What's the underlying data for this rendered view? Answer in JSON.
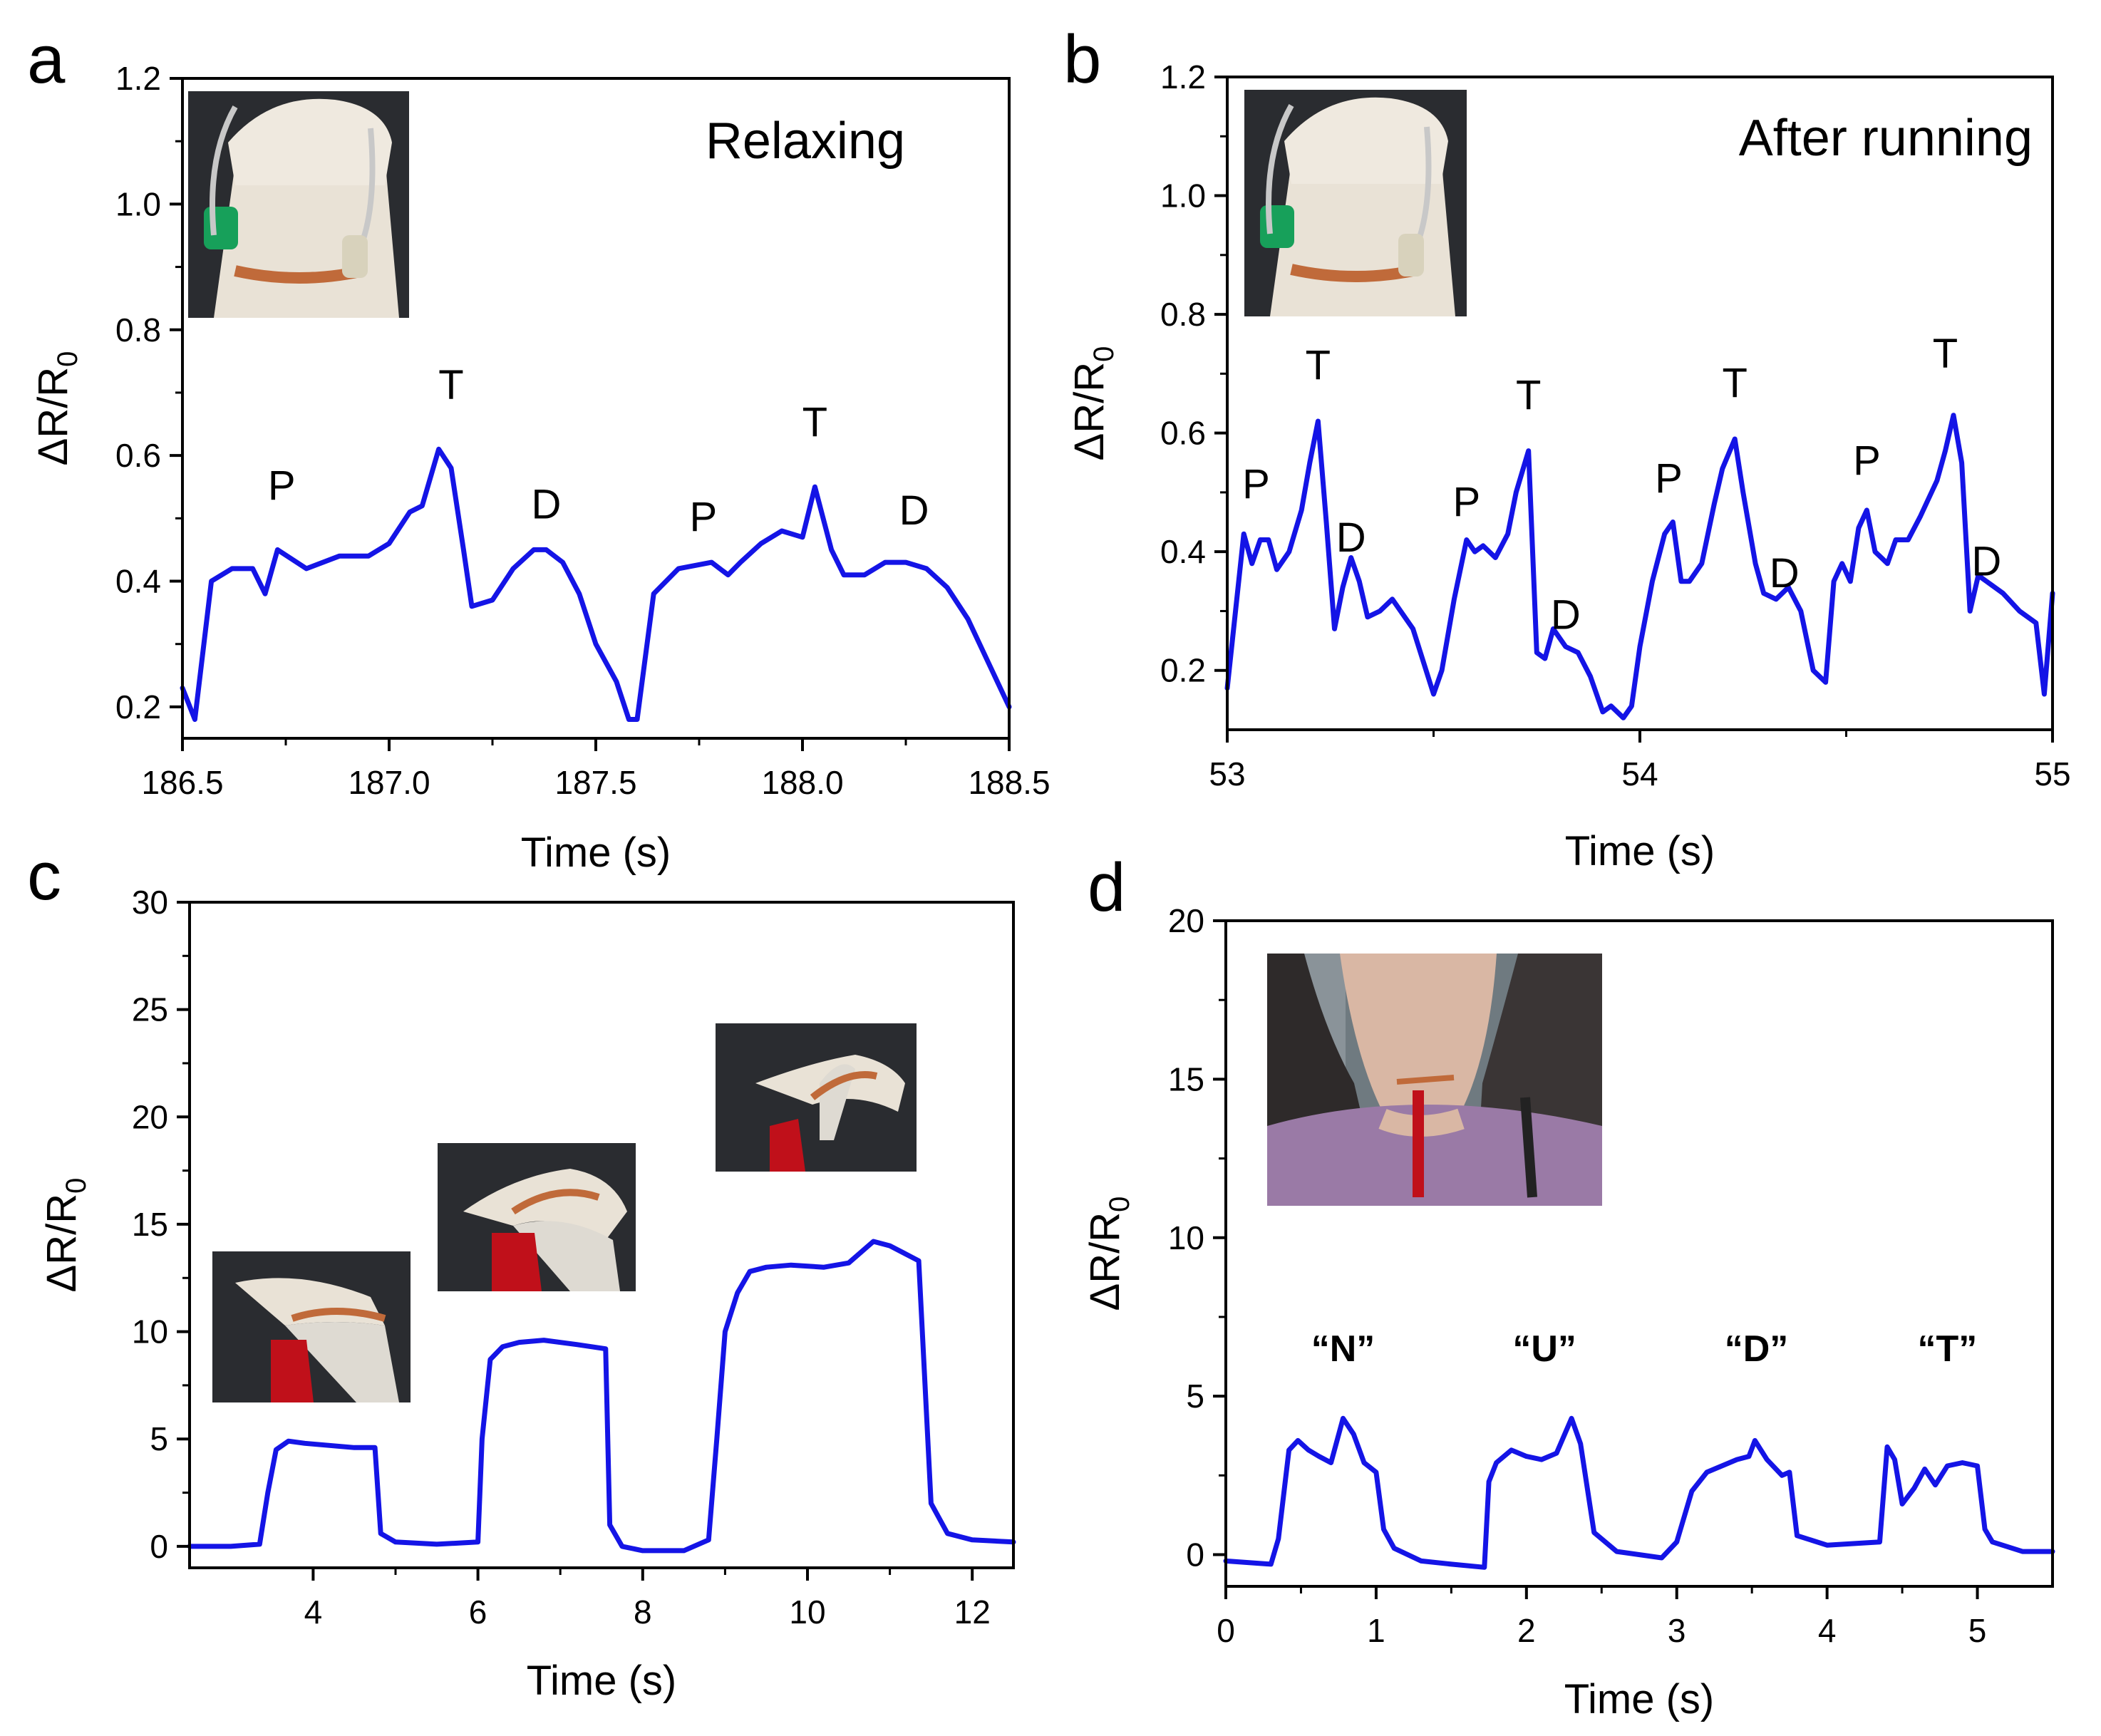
{
  "colors": {
    "line": "#1414e6",
    "axis": "#000000",
    "photo_glove": "#e9e2d6",
    "photo_dark": "#2a2c30",
    "photo_clip_red": "#c0101a",
    "photo_shirt": "#9a7aa6",
    "photo_skin": "#d9b7a4",
    "photo_copper": "#c06a3a"
  },
  "chart_data": [
    {
      "panel": "a",
      "type": "line",
      "title": "Relaxing",
      "xlabel": "Time (s)",
      "ylabel": "ΔR/R0",
      "xlim": [
        186.5,
        188.5
      ],
      "ylim": [
        0.15,
        1.2
      ],
      "xticks": [
        186.5,
        187.0,
        187.5,
        188.0,
        188.5
      ],
      "xtick_labels": [
        "186.5",
        "187.0",
        "187.5",
        "188.0",
        "188.5"
      ],
      "yticks": [
        0.2,
        0.4,
        0.6,
        0.8,
        1.0,
        1.2
      ],
      "ytick_labels": [
        "0.2",
        "0.4",
        "0.6",
        "0.8",
        "1.0",
        "1.2"
      ],
      "annotations": [
        {
          "text": "P",
          "x": 186.74,
          "y": 0.53
        },
        {
          "text": "T",
          "x": 187.15,
          "y": 0.69
        },
        {
          "text": "D",
          "x": 187.38,
          "y": 0.5
        },
        {
          "text": "P",
          "x": 187.76,
          "y": 0.48
        },
        {
          "text": "T",
          "x": 188.03,
          "y": 0.63
        },
        {
          "text": "D",
          "x": 188.27,
          "y": 0.49
        }
      ],
      "x": [
        186.5,
        186.53,
        186.57,
        186.62,
        186.67,
        186.7,
        186.73,
        186.8,
        186.88,
        186.95,
        187.0,
        187.05,
        187.08,
        187.12,
        187.15,
        187.18,
        187.2,
        187.25,
        187.3,
        187.35,
        187.38,
        187.42,
        187.46,
        187.5,
        187.55,
        187.58,
        187.6,
        187.64,
        187.7,
        187.78,
        187.82,
        187.85,
        187.9,
        187.95,
        188.0,
        188.03,
        188.07,
        188.1,
        188.15,
        188.2,
        188.25,
        188.3,
        188.35,
        188.4,
        188.45,
        188.5
      ],
      "values": [
        0.23,
        0.18,
        0.4,
        0.42,
        0.42,
        0.38,
        0.45,
        0.42,
        0.44,
        0.44,
        0.46,
        0.51,
        0.52,
        0.61,
        0.58,
        0.45,
        0.36,
        0.37,
        0.42,
        0.45,
        0.45,
        0.43,
        0.38,
        0.3,
        0.24,
        0.18,
        0.18,
        0.38,
        0.42,
        0.43,
        0.41,
        0.43,
        0.46,
        0.48,
        0.47,
        0.55,
        0.45,
        0.41,
        0.41,
        0.43,
        0.43,
        0.42,
        0.39,
        0.34,
        0.27,
        0.2
      ]
    },
    {
      "panel": "b",
      "type": "line",
      "title": "After running",
      "xlabel": "Time (s)",
      "ylabel": "ΔR/R0",
      "xlim": [
        53,
        55
      ],
      "ylim": [
        0.1,
        1.2
      ],
      "xticks": [
        53,
        54,
        55
      ],
      "xtick_labels": [
        "53",
        "54",
        "55"
      ],
      "yticks": [
        0.2,
        0.4,
        0.6,
        0.8,
        1.0,
        1.2
      ],
      "ytick_labels": [
        "0.2",
        "0.4",
        "0.6",
        "0.8",
        "1.0",
        "1.2"
      ],
      "annotations": [
        {
          "text": "P",
          "x": 53.07,
          "y": 0.49
        },
        {
          "text": "T",
          "x": 53.22,
          "y": 0.69
        },
        {
          "text": "D",
          "x": 53.3,
          "y": 0.4
        },
        {
          "text": "P",
          "x": 53.58,
          "y": 0.46
        },
        {
          "text": "T",
          "x": 53.73,
          "y": 0.64
        },
        {
          "text": "D",
          "x": 53.82,
          "y": 0.27
        },
        {
          "text": "P",
          "x": 54.07,
          "y": 0.5
        },
        {
          "text": "T",
          "x": 54.23,
          "y": 0.66
        },
        {
          "text": "D",
          "x": 54.35,
          "y": 0.34
        },
        {
          "text": "P",
          "x": 54.55,
          "y": 0.53
        },
        {
          "text": "T",
          "x": 54.74,
          "y": 0.71
        },
        {
          "text": "D",
          "x": 54.84,
          "y": 0.36
        }
      ],
      "x": [
        53.0,
        53.02,
        53.04,
        53.06,
        53.08,
        53.1,
        53.12,
        53.15,
        53.18,
        53.2,
        53.22,
        53.24,
        53.26,
        53.28,
        53.3,
        53.32,
        53.34,
        53.37,
        53.4,
        53.45,
        53.5,
        53.52,
        53.55,
        53.58,
        53.6,
        53.62,
        53.65,
        53.68,
        53.7,
        53.73,
        53.75,
        53.77,
        53.79,
        53.82,
        53.85,
        53.88,
        53.91,
        53.93,
        53.96,
        53.98,
        54.0,
        54.03,
        54.06,
        54.08,
        54.1,
        54.12,
        54.15,
        54.18,
        54.2,
        54.23,
        54.25,
        54.28,
        54.3,
        54.33,
        54.36,
        54.39,
        54.42,
        54.45,
        54.47,
        54.49,
        54.51,
        54.53,
        54.55,
        54.57,
        54.6,
        54.62,
        54.65,
        54.68,
        54.7,
        54.72,
        54.74,
        54.76,
        54.78,
        54.8,
        54.82,
        54.84,
        54.88,
        54.92,
        54.96,
        54.98,
        55.0
      ],
      "values": [
        0.17,
        0.3,
        0.43,
        0.38,
        0.42,
        0.42,
        0.37,
        0.4,
        0.47,
        0.55,
        0.62,
        0.45,
        0.27,
        0.34,
        0.39,
        0.35,
        0.29,
        0.3,
        0.32,
        0.27,
        0.16,
        0.2,
        0.32,
        0.42,
        0.4,
        0.41,
        0.39,
        0.43,
        0.5,
        0.57,
        0.23,
        0.22,
        0.27,
        0.24,
        0.23,
        0.19,
        0.13,
        0.14,
        0.12,
        0.14,
        0.24,
        0.35,
        0.43,
        0.45,
        0.35,
        0.35,
        0.38,
        0.48,
        0.54,
        0.59,
        0.5,
        0.38,
        0.33,
        0.32,
        0.34,
        0.3,
        0.2,
        0.18,
        0.35,
        0.38,
        0.35,
        0.44,
        0.47,
        0.4,
        0.38,
        0.42,
        0.42,
        0.46,
        0.49,
        0.52,
        0.57,
        0.63,
        0.55,
        0.3,
        0.36,
        0.35,
        0.33,
        0.3,
        0.28,
        0.16,
        0.33
      ]
    },
    {
      "panel": "c",
      "type": "line",
      "title": "",
      "xlabel": "Time (s)",
      "ylabel": "ΔR/R0",
      "xlim": [
        2.5,
        12.5
      ],
      "ylim": [
        -1,
        30
      ],
      "xticks": [
        4,
        6,
        8,
        10,
        12
      ],
      "xtick_labels": [
        "4",
        "6",
        "8",
        "10",
        "12"
      ],
      "yticks": [
        0,
        5,
        10,
        15,
        20,
        25,
        30
      ],
      "ytick_labels": [
        "0",
        "5",
        "10",
        "15",
        "20",
        "25",
        "30"
      ],
      "annotations": [],
      "x": [
        2.5,
        3.0,
        3.35,
        3.45,
        3.55,
        3.7,
        3.9,
        4.2,
        4.5,
        4.75,
        4.82,
        5.0,
        5.5,
        6.0,
        6.05,
        6.15,
        6.3,
        6.5,
        6.8,
        7.2,
        7.55,
        7.6,
        7.75,
        8.0,
        8.5,
        8.8,
        8.9,
        9.0,
        9.15,
        9.3,
        9.5,
        9.8,
        10.2,
        10.5,
        10.8,
        11.0,
        11.2,
        11.35,
        11.5,
        11.7,
        12.0,
        12.5
      ],
      "values": [
        0.0,
        0.0,
        0.1,
        2.5,
        4.5,
        4.9,
        4.8,
        4.7,
        4.6,
        4.6,
        0.6,
        0.2,
        0.1,
        0.2,
        5.0,
        8.7,
        9.3,
        9.5,
        9.6,
        9.4,
        9.2,
        1.0,
        0.0,
        -0.2,
        -0.2,
        0.3,
        5.0,
        10.0,
        11.8,
        12.8,
        13.0,
        13.1,
        13.0,
        13.2,
        14.2,
        14.0,
        13.6,
        13.3,
        2.0,
        0.6,
        0.3,
        0.2
      ]
    },
    {
      "panel": "d",
      "type": "line",
      "title": "",
      "xlabel": "Time (s)",
      "ylabel": "ΔR/R0",
      "xlim": [
        0,
        5.5
      ],
      "ylim": [
        -1,
        20
      ],
      "xticks": [
        0,
        1,
        2,
        3,
        4,
        5
      ],
      "xtick_labels": [
        "0",
        "1",
        "2",
        "3",
        "4",
        "5"
      ],
      "yticks": [
        0,
        5,
        10,
        15,
        20
      ],
      "ytick_labels": [
        "0",
        "5",
        "10",
        "15",
        "20"
      ],
      "annotations": [
        {
          "text": "“N”",
          "x": 0.78,
          "y": 6.1,
          "bold": true
        },
        {
          "text": "“U”",
          "x": 2.12,
          "y": 6.1,
          "bold": true
        },
        {
          "text": "“D”",
          "x": 3.53,
          "y": 6.1,
          "bold": true
        },
        {
          "text": "“T”",
          "x": 4.8,
          "y": 6.1,
          "bold": true
        }
      ],
      "x": [
        0.0,
        0.3,
        0.35,
        0.42,
        0.48,
        0.55,
        0.62,
        0.7,
        0.78,
        0.85,
        0.92,
        1.0,
        1.05,
        1.12,
        1.3,
        1.5,
        1.72,
        1.75,
        1.8,
        1.9,
        2.0,
        2.1,
        2.2,
        2.3,
        2.36,
        2.45,
        2.6,
        2.9,
        3.0,
        3.1,
        3.2,
        3.3,
        3.4,
        3.48,
        3.52,
        3.6,
        3.7,
        3.75,
        3.8,
        4.0,
        4.35,
        4.4,
        4.45,
        4.5,
        4.58,
        4.65,
        4.72,
        4.8,
        4.9,
        5.0,
        5.05,
        5.1,
        5.3,
        5.5
      ],
      "values": [
        -0.2,
        -0.3,
        0.5,
        3.3,
        3.6,
        3.3,
        3.1,
        2.9,
        4.3,
        3.8,
        2.9,
        2.6,
        0.8,
        0.2,
        -0.2,
        -0.3,
        -0.4,
        2.3,
        2.9,
        3.3,
        3.1,
        3.0,
        3.2,
        4.3,
        3.5,
        0.7,
        0.1,
        -0.1,
        0.4,
        2.0,
        2.6,
        2.8,
        3.0,
        3.1,
        3.6,
        3.0,
        2.5,
        2.6,
        0.6,
        0.3,
        0.4,
        3.4,
        3.0,
        1.6,
        2.1,
        2.7,
        2.2,
        2.8,
        2.9,
        2.8,
        0.8,
        0.4,
        0.1,
        0.1
      ]
    }
  ]
}
